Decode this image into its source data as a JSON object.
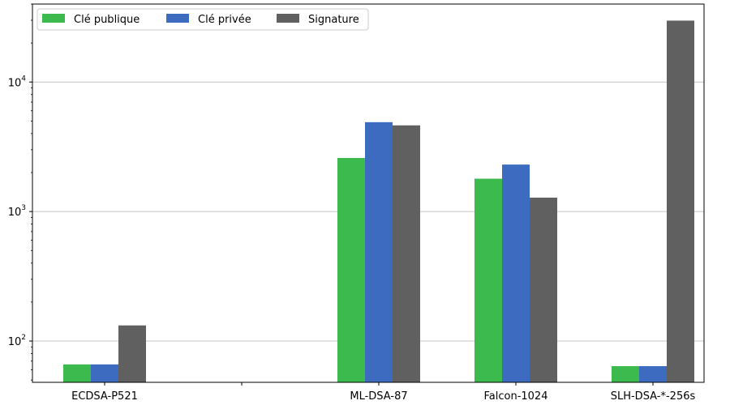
{
  "chart_data": {
    "type": "bar",
    "title": "",
    "xlabel": "",
    "ylabel": "",
    "yscale": "log",
    "ylim": [
      48,
      40000
    ],
    "grid": "y-major",
    "legend": "top-left",
    "categories": [
      "ECDSA-P521",
      "",
      "ML-DSA-87",
      "Falcon-1024",
      "SLH-DSA-*-256s"
    ],
    "series": [
      {
        "name": "Clé publique",
        "color": "#3dba4e",
        "values": [
          66,
          null,
          2592,
          1793,
          64
        ]
      },
      {
        "name": "Clé privée",
        "color": "#3d6bbf",
        "values": [
          66,
          null,
          4896,
          2305,
          64
        ]
      },
      {
        "name": "Signature",
        "color": "#616060",
        "values": [
          132,
          null,
          4627,
          1280,
          29792
        ]
      }
    ],
    "y_ticks": [
      {
        "value": 100,
        "base": "10",
        "exp": "2"
      },
      {
        "value": 1000,
        "base": "10",
        "exp": "3"
      },
      {
        "value": 10000,
        "base": "10",
        "exp": "4"
      }
    ]
  }
}
